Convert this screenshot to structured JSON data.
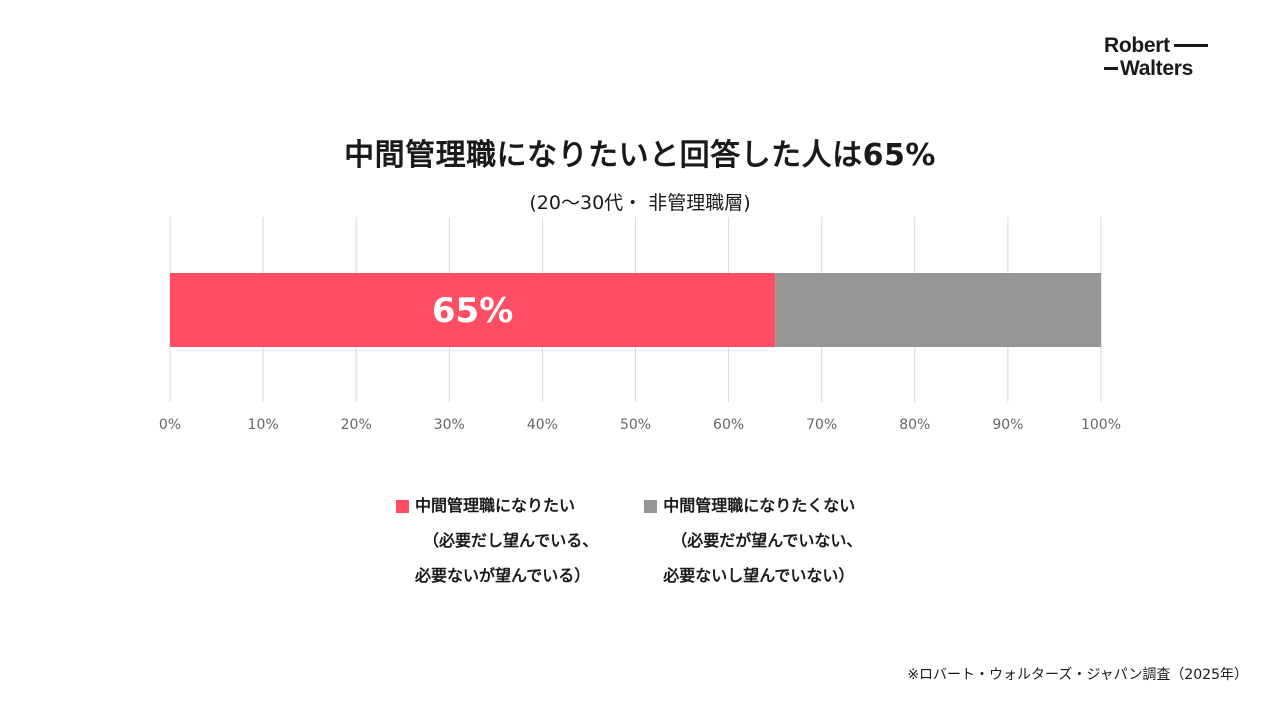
{
  "logo": {
    "line1": "Robert",
    "line2": "Walters"
  },
  "chart_data": {
    "type": "bar",
    "orientation": "horizontal-stacked",
    "title": "中間管理職になりたいと回答した人は65%",
    "subtitle": "(20〜30代・ 非管理職層)",
    "xlim": [
      0,
      100
    ],
    "x_ticks": [
      "0%",
      "10%",
      "20%",
      "30%",
      "40%",
      "50%",
      "60%",
      "70%",
      "80%",
      "90%",
      "100%"
    ],
    "grid": true,
    "series": [
      {
        "name": "中間管理職になりたい（必要だし望んでいる、必要ないが望んでいる）",
        "value": 65,
        "data_label": "65%",
        "color": "#ff4d63"
      },
      {
        "name": "中間管理職になりたくない（必要だが望んでいない、必要ないし望んでいない）",
        "value": 35,
        "color": "#969696"
      }
    ]
  },
  "legend": [
    {
      "line1": "中間管理職になりたい",
      "line2": "（必要だし望んでいる、",
      "line3": "必要ないが望んでいる）",
      "color": "#ff4d63"
    },
    {
      "line1": "中間管理職になりたくない",
      "line2": "（必要だが望んでいない、",
      "line3": "必要ないし望んでいない）",
      "color": "#969696"
    }
  ],
  "footnote": "※ロバート・ウォルターズ・ジャパン調査（2025年）"
}
